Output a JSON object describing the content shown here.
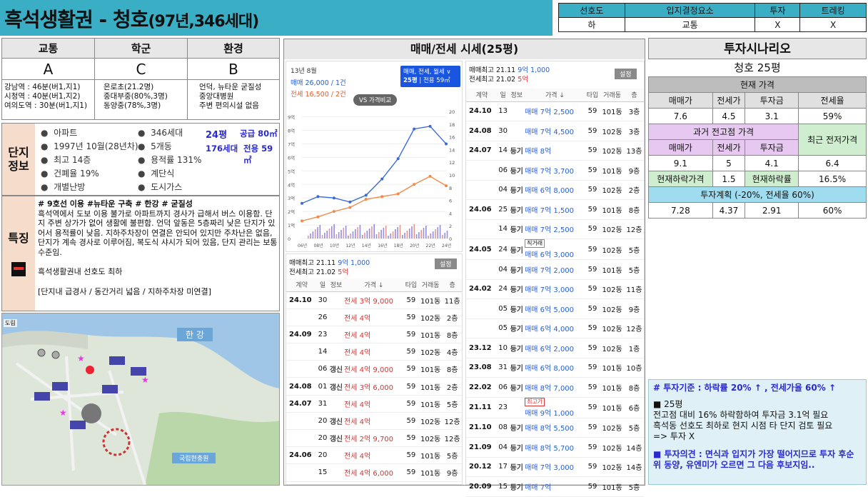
{
  "header": {
    "title": "흑석생활권 - 청호",
    "subtitle": "(97년,346세대)"
  },
  "criteria": {
    "headers": [
      "선호도",
      "입지결정요소",
      "투자",
      "트레킹"
    ],
    "values": [
      "하",
      "교통",
      "X",
      "X"
    ]
  },
  "left": {
    "grades": {
      "headers": [
        "교통",
        "학군",
        "환경"
      ],
      "values": [
        "A",
        "C",
        "B"
      ],
      "details": [
        [
          "강남역 : 46분(버1,지1)",
          "시청역 : 40분(버1,지2)",
          "여의도역 : 30분(버1,지1)"
        ],
        [
          "은로초(21.2명)",
          "중대부중(80%,3명)",
          "동양중(78%,3명)"
        ],
        [
          "언덕, 뉴타운 굳질성",
          "중앙대병원",
          "주변 편의시설 없음"
        ]
      ]
    },
    "complex": {
      "label1": "단지",
      "label2": "정보",
      "col1": [
        "아파트",
        "1997년 10월(28년차)",
        "최고 14층",
        "건폐율 19%",
        "개별난방"
      ],
      "col2": [
        "346세대",
        "5개동",
        "용적률 131%",
        "계단식",
        "도시가스"
      ],
      "py1": "24평",
      "supply1": "공급 80㎡",
      "units2": "176세대",
      "area2": "전용 59㎡"
    },
    "feature": {
      "label": "특징",
      "tags": "# 9호선 이용 #뉴타운 구축 # 한강 # 굳질성",
      "body": "흑석역에서 도보 이용 불가로 아파트까지 경사가 급해서 버스 이용함. 단지 주변 상가가 없어 생활에 불편함. 언덕 앞동은 5층짜리 낮은 단지가 있어서 용적률이 낮음. 지하주차장이 연결은 안되어 있지만 주차난은 없음, 단지가 계속 경사로 이루어짐, 복도식 샤시가 되어 있음, 단지 관리는 보통 수준임.",
      "note": "흑석생활권내 선호도 최하",
      "bracket": "[단지내 급경사 / 동간거리 넓음 / 지하주차장 미연결]"
    },
    "map": {
      "river": "한 강",
      "cemetery": "국립현충원",
      "corner": "도림"
    }
  },
  "mid": {
    "title": "매매/전세 시세(25평)",
    "chart": {
      "date": "13년 8월",
      "sale": "매매 26,000 / 1건",
      "jeonse": "전세 16,500 / 2건",
      "compare": "VS 가격비교",
      "legend1": "매매, 전세, 월세 ∨",
      "legend2": "25평",
      "legend3": "전용 59㎡"
    },
    "chart_data": {
      "type": "line",
      "x": [
        "06년",
        "08년",
        "10년",
        "12년",
        "14년",
        "16년",
        "18년",
        "20년",
        "22년",
        "24년"
      ],
      "series": [
        {
          "values": [
            2.6,
            3.1,
            3.0,
            2.7,
            3.2,
            4.4,
            5.9,
            8.1,
            8.3,
            7.0
          ]
        },
        {
          "values": [
            1.3,
            1.6,
            2.0,
            2.3,
            2.9,
            3.1,
            3.3,
            4.0,
            4.6,
            3.9
          ]
        }
      ],
      "yleft": [
        "0",
        "1억",
        "2억",
        "3억",
        "4억",
        "5억",
        "6억",
        "7억",
        "8억",
        "9억"
      ],
      "yright": [
        "0",
        "2",
        "4",
        "6",
        "8",
        "10",
        "12",
        "14",
        "16",
        "18",
        "20"
      ],
      "ylim": [
        0,
        9.4
      ]
    },
    "lower": {
      "max1": "매매최고 21.11",
      "max1v": "9억 1,000",
      "max2": "전세최고 21.02",
      "max2v": "5억",
      "settings": "설정",
      "headers": [
        "계약",
        "일",
        "정보",
        "가격 ↓",
        "타입",
        "거래동",
        "층"
      ],
      "rows": [
        {
          "ym": "24.10",
          "d": "30",
          "info": "",
          "price": "전세 3억 9,000",
          "t": "59",
          "dong": "101동",
          "fl": "11층"
        },
        {
          "ym": "",
          "d": "26",
          "info": "",
          "price": "전세 4억",
          "t": "59",
          "dong": "102동",
          "fl": "2층"
        },
        {
          "ym": "24.09",
          "d": "23",
          "info": "",
          "price": "전세 4억",
          "t": "59",
          "dong": "101동",
          "fl": "8층"
        },
        {
          "ym": "",
          "d": "14",
          "info": "",
          "price": "전세 4억",
          "t": "59",
          "dong": "102동",
          "fl": "4층"
        },
        {
          "ym": "",
          "d": "06",
          "info": "갱신",
          "price": "전세 4억 9,000",
          "t": "59",
          "dong": "101동",
          "fl": "8층"
        },
        {
          "ym": "24.08",
          "d": "01",
          "info": "갱신",
          "price": "전세 3억 6,000",
          "t": "59",
          "dong": "101동",
          "fl": "2층"
        },
        {
          "ym": "24.07",
          "d": "31",
          "info": "",
          "price": "전세 4억",
          "t": "59",
          "dong": "101동",
          "fl": "5층"
        },
        {
          "ym": "",
          "d": "20",
          "info": "갱신",
          "price": "전세 4억",
          "t": "59",
          "dong": "102동",
          "fl": "12층"
        },
        {
          "ym": "",
          "d": "20",
          "info": "갱신",
          "price": "전세 2억 9,700",
          "t": "59",
          "dong": "102동",
          "fl": "12층"
        },
        {
          "ym": "24.06",
          "d": "20",
          "info": "",
          "price": "전세 4억",
          "t": "59",
          "dong": "101동",
          "fl": "5층"
        },
        {
          "ym": "",
          "d": "15",
          "info": "",
          "price": "전세 4억 6,000",
          "t": "59",
          "dong": "101동",
          "fl": "9층"
        }
      ]
    },
    "right": {
      "max1": "매매최고 21.11",
      "max1v": "9억 1,000",
      "max2": "전세최고 21.02",
      "max2v": "5억",
      "settings": "설정",
      "headers": [
        "계약",
        "일",
        "정보",
        "가격 ↓",
        "타입",
        "거래동",
        "층"
      ],
      "rows": [
        {
          "ym": "24.10",
          "d": "13",
          "info": "",
          "tag": "",
          "price": "매매 7억 2,500",
          "t": "59",
          "dong": "101동",
          "fl": "3층"
        },
        {
          "ym": "24.08",
          "d": "30",
          "info": "",
          "tag": "",
          "price": "매매 7억 4,500",
          "t": "59",
          "dong": "102동",
          "fl": "3층"
        },
        {
          "ym": "24.07",
          "d": "14",
          "info": "등기",
          "tag": "",
          "price": "매매 8억",
          "t": "59",
          "dong": "102동",
          "fl": "13층"
        },
        {
          "ym": "",
          "d": "06",
          "info": "등기",
          "tag": "",
          "price": "매매 7억 3,700",
          "t": "59",
          "dong": "101동",
          "fl": "9층"
        },
        {
          "ym": "",
          "d": "04",
          "info": "등기",
          "tag": "",
          "price": "매매 6억 8,000",
          "t": "59",
          "dong": "102동",
          "fl": "2층"
        },
        {
          "ym": "24.06",
          "d": "25",
          "info": "등기",
          "tag": "",
          "price": "매매 7억 1,500",
          "t": "59",
          "dong": "101동",
          "fl": "8층"
        },
        {
          "ym": "",
          "d": "14",
          "info": "등기",
          "tag": "",
          "price": "매매 7억 2,500",
          "t": "59",
          "dong": "102동",
          "fl": "12층"
        },
        {
          "ym": "24.05",
          "d": "24",
          "info": "등기",
          "tag": "직거래",
          "price": "매매 6억 3,000",
          "t": "59",
          "dong": "102동",
          "fl": "5층"
        },
        {
          "ym": "",
          "d": "04",
          "info": "등기",
          "tag": "",
          "price": "매매 7억 2,000",
          "t": "59",
          "dong": "101동",
          "fl": "5층"
        },
        {
          "ym": "24.02",
          "d": "24",
          "info": "등기",
          "tag": "",
          "price": "매매 7억 3,000",
          "t": "59",
          "dong": "102동",
          "fl": "11층"
        },
        {
          "ym": "",
          "d": "05",
          "info": "등기",
          "tag": "",
          "price": "매매 6억 5,000",
          "t": "59",
          "dong": "102동",
          "fl": "9층"
        },
        {
          "ym": "",
          "d": "05",
          "info": "등기",
          "tag": "",
          "price": "매매 6억 4,000",
          "t": "59",
          "dong": "102동",
          "fl": "12층"
        },
        {
          "ym": "23.12",
          "d": "10",
          "info": "등기",
          "tag": "",
          "price": "매매 6억 2,000",
          "t": "59",
          "dong": "102동",
          "fl": "1층"
        },
        {
          "ym": "23.08",
          "d": "31",
          "info": "등기",
          "tag": "",
          "price": "매매 6억 8,000",
          "t": "59",
          "dong": "101동",
          "fl": "10층"
        },
        {
          "ym": "22.02",
          "d": "06",
          "info": "등기",
          "tag": "",
          "price": "매매 8억 7,000",
          "t": "59",
          "dong": "101동",
          "fl": "8층"
        },
        {
          "ym": "21.11",
          "d": "23",
          "info": "",
          "tag": "최고가",
          "price": "매매 9억 1,000",
          "t": "59",
          "dong": "101동",
          "fl": "6층"
        },
        {
          "ym": "21.10",
          "d": "08",
          "info": "등기",
          "tag": "",
          "price": "매매 8억 5,500",
          "t": "59",
          "dong": "102동",
          "fl": "5층"
        },
        {
          "ym": "21.09",
          "d": "04",
          "info": "등기",
          "tag": "",
          "price": "매매 8억 5,700",
          "t": "59",
          "dong": "102동",
          "fl": "14층"
        },
        {
          "ym": "20.12",
          "d": "17",
          "info": "등기",
          "tag": "",
          "price": "매매 7억 3,000",
          "t": "59",
          "dong": "102동",
          "fl": "14층"
        },
        {
          "ym": "20.09",
          "d": "15",
          "info": "등기",
          "tag": "",
          "price": "매매 7억",
          "t": "59",
          "dong": "101동",
          "fl": "5층"
        }
      ]
    }
  },
  "right": {
    "title": "투자시나리오",
    "apt": "청호 25평",
    "current": {
      "label": "현재 가격",
      "h": [
        "매매가",
        "전세가",
        "투자금",
        "전세율"
      ],
      "v": [
        "7.6",
        "4.5",
        "3.1",
        "59%"
      ]
    },
    "past": {
      "label": "과거 전고점 가격",
      "recent": "최근 전저가격",
      "h": [
        "매매가",
        "전세가",
        "투자금"
      ],
      "v": [
        "9.1",
        "5",
        "4.1",
        "6.4"
      ]
    },
    "drop": {
      "l1": "현재하락가격",
      "v1": "1.5",
      "l2": "현재하락률",
      "v2": "16.5%"
    },
    "plan": {
      "label": "투자계획 (-20%, 전세율 60%)",
      "v": [
        "7.28",
        "4.37",
        "2.91",
        "60%"
      ]
    },
    "note": {
      "std": "# 투자기준 : 하락률 20% ↑ , 전세가율 60% ↑",
      "h": "■ 25평",
      "l1": "전고점 대비 16% 하락함하여 투자금 3.1억 필요",
      "l2": "흑석동 선호도 최하로 현지 시점 타 단지 검토 필요",
      "l3": "=> 투자 X",
      "op": "■ 투자의견 : 면식과 입지가 가장 떨어지므로 투자 후순위 동양, 유엔미가 오르면 그 다음 후보지임.."
    }
  }
}
